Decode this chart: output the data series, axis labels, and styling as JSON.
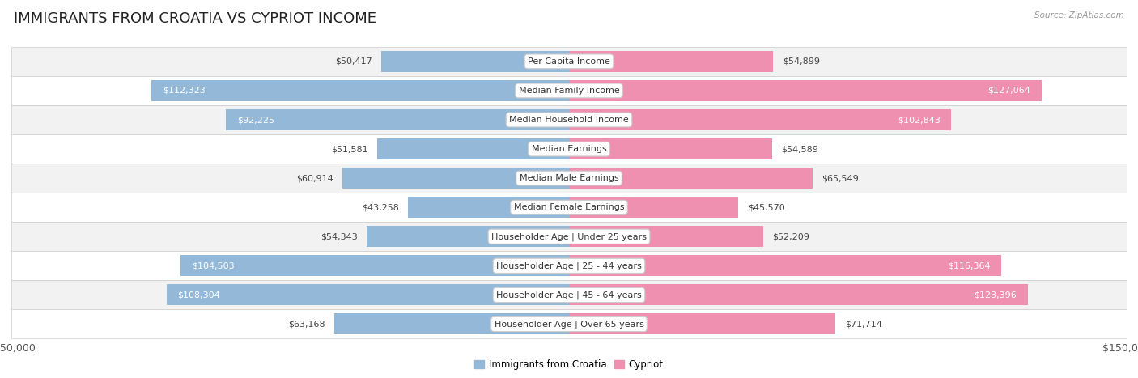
{
  "title": "IMMIGRANTS FROM CROATIA VS CYPRIOT INCOME",
  "source": "Source: ZipAtlas.com",
  "categories": [
    "Per Capita Income",
    "Median Family Income",
    "Median Household Income",
    "Median Earnings",
    "Median Male Earnings",
    "Median Female Earnings",
    "Householder Age | Under 25 years",
    "Householder Age | 25 - 44 years",
    "Householder Age | 45 - 64 years",
    "Householder Age | Over 65 years"
  ],
  "croatia_values": [
    50417,
    112323,
    92225,
    51581,
    60914,
    43258,
    54343,
    104503,
    108304,
    63168
  ],
  "cypriot_values": [
    54899,
    127064,
    102843,
    54589,
    65549,
    45570,
    52209,
    116364,
    123396,
    71714
  ],
  "croatia_color": "#93b8d8",
  "cypriot_color": "#f090b0",
  "croatia_label": "Immigrants from Croatia",
  "cypriot_label": "Cypriot",
  "x_max": 150000,
  "bg_color": "#ffffff",
  "row_bg_light": "#f2f2f2",
  "row_bg_white": "#ffffff",
  "sep_color": "#cccccc",
  "title_fontsize": 13,
  "axis_fontsize": 9,
  "bar_label_fontsize": 8,
  "category_fontsize": 8,
  "inside_label_color": "#ffffff",
  "outside_label_color": "#444444"
}
